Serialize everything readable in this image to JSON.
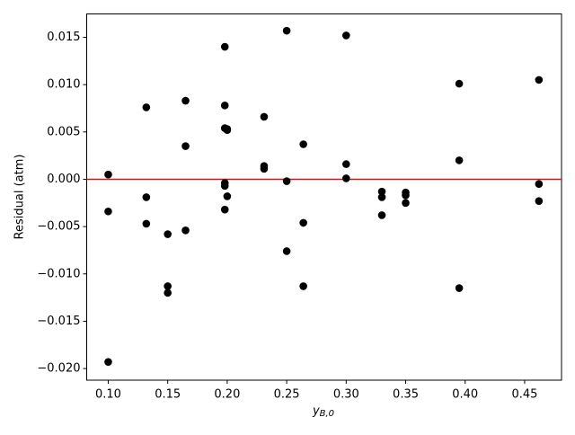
{
  "chart_data": {
    "type": "scatter",
    "y_label": "Residual (atm)",
    "x_label": {
      "main": "y",
      "sub": "B,0"
    },
    "x": [
      0.1,
      0.1,
      0.1,
      0.132,
      0.132,
      0.132,
      0.15,
      0.15,
      0.15,
      0.165,
      0.165,
      0.165,
      0.198,
      0.198,
      0.198,
      0.198,
      0.198,
      0.198,
      0.2,
      0.2,
      0.2,
      0.231,
      0.231,
      0.231,
      0.25,
      0.25,
      0.25,
      0.264,
      0.264,
      0.264,
      0.3,
      0.3,
      0.3,
      0.33,
      0.33,
      0.33,
      0.35,
      0.35,
      0.35,
      0.395,
      0.395,
      0.395,
      0.462,
      0.462,
      0.462
    ],
    "values": [
      0.0005,
      -0.0034,
      -0.0193,
      0.0076,
      -0.0019,
      -0.0047,
      -0.0058,
      -0.0113,
      -0.012,
      0.0083,
      0.0035,
      -0.0054,
      0.014,
      0.0078,
      0.0054,
      -0.0004,
      -0.0007,
      -0.0032,
      0.0053,
      0.0052,
      -0.0018,
      0.0066,
      0.0014,
      0.0011,
      0.0157,
      -0.0002,
      -0.0076,
      0.0037,
      -0.0046,
      -0.0113,
      0.0152,
      0.0016,
      0.0001,
      -0.0013,
      -0.0019,
      -0.0038,
      -0.0014,
      -0.0017,
      -0.0025,
      0.0101,
      0.002,
      -0.0115,
      0.0105,
      -0.0005,
      -0.0023
    ],
    "color": "#000000",
    "hline": {
      "value": 0,
      "color": "#ff0000"
    },
    "xlim": [
      0.0819,
      0.481
    ],
    "ylim": [
      -0.02123,
      0.01747
    ],
    "xticks": [
      {
        "value": 0.1,
        "label": "0.10"
      },
      {
        "value": 0.15,
        "label": "0.15"
      },
      {
        "value": 0.2,
        "label": "0.20"
      },
      {
        "value": 0.25,
        "label": "0.25"
      },
      {
        "value": 0.3,
        "label": "0.30"
      },
      {
        "value": 0.35,
        "label": "0.35"
      },
      {
        "value": 0.4,
        "label": "0.40"
      },
      {
        "value": 0.45,
        "label": "0.45"
      }
    ],
    "yticks": [
      {
        "value": -0.02,
        "label": "−0.020"
      },
      {
        "value": -0.015,
        "label": "−0.015"
      },
      {
        "value": -0.01,
        "label": "−0.010"
      },
      {
        "value": -0.005,
        "label": "−0.005"
      },
      {
        "value": 0,
        "label": "0.000"
      },
      {
        "value": 0.005,
        "label": "0.005"
      },
      {
        "value": 0.01,
        "label": "0.010"
      },
      {
        "value": 0.015,
        "label": "0.015"
      }
    ]
  }
}
